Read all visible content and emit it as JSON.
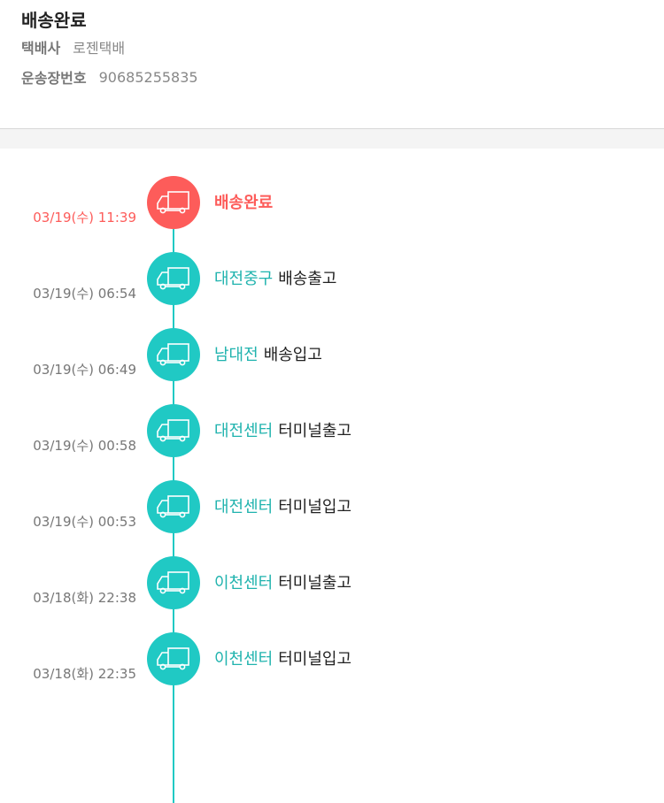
{
  "header": {
    "title": "배송완료",
    "carrier_label": "택배사",
    "carrier": "로젠택배",
    "tracking_label": "운송장번호",
    "tracking": "90685255835"
  },
  "colors": {
    "active": "#fd5c5a",
    "accent": "#20c9c4"
  },
  "events": [
    {
      "time": "03/19(수) 11:39",
      "location": "",
      "status": "배송완료",
      "icon": "truck-icon"
    },
    {
      "time": "03/19(수) 06:54",
      "location": "대전중구",
      "status": "배송출고",
      "icon": "truck-icon"
    },
    {
      "time": "03/19(수) 06:49",
      "location": "남대전",
      "status": "배송입고",
      "icon": "truck-icon"
    },
    {
      "time": "03/19(수) 00:58",
      "location": "대전센터",
      "status": "터미널출고",
      "icon": "truck-icon"
    },
    {
      "time": "03/19(수) 00:53",
      "location": "대전센터",
      "status": "터미널입고",
      "icon": "truck-icon"
    },
    {
      "time": "03/18(화) 22:38",
      "location": "이천센터",
      "status": "터미널출고",
      "icon": "truck-icon"
    },
    {
      "time": "03/18(화) 22:35",
      "location": "이천센터",
      "status": "터미널입고",
      "icon": "truck-icon"
    }
  ]
}
